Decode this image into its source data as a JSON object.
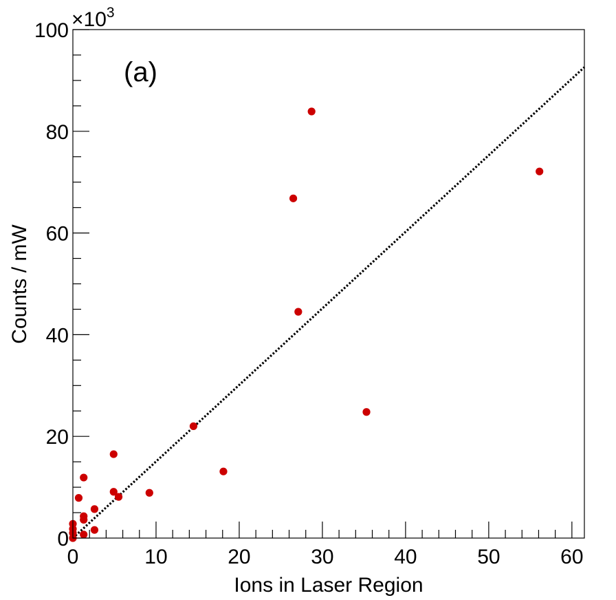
{
  "chart_data": {
    "type": "scatter",
    "panel_label": "(a)",
    "xlabel": "Ions in Laser Region",
    "ylabel": "Counts / mW",
    "y_exponent_label": "×10",
    "y_exponent_power": "3",
    "xlim": [
      0,
      61.5
    ],
    "ylim": [
      0,
      100
    ],
    "x_ticks": [
      0,
      10,
      20,
      30,
      40,
      50,
      60
    ],
    "y_ticks": [
      0,
      20,
      40,
      60,
      80,
      100
    ],
    "x_tick_labels": [
      "0",
      "10",
      "20",
      "30",
      "40",
      "50",
      "60"
    ],
    "y_tick_labels": [
      "0",
      "20",
      "40",
      "60",
      "80",
      "100"
    ],
    "grid": false,
    "marker_color": "#cc0000",
    "fit_line_color": "#000000",
    "fit_line": {
      "style": "dotted",
      "x": [
        0,
        61.5
      ],
      "y": [
        0,
        92.6
      ]
    },
    "points": [
      {
        "x": 0,
        "y": 0
      },
      {
        "x": 0,
        "y": 1.0
      },
      {
        "x": 0,
        "y": 1.8
      },
      {
        "x": 0,
        "y": 2.8
      },
      {
        "x": 0.7,
        "y": 7.9
      },
      {
        "x": 1.3,
        "y": 0.7
      },
      {
        "x": 1.3,
        "y": 3.6
      },
      {
        "x": 1.3,
        "y": 4.3
      },
      {
        "x": 1.3,
        "y": 11.9
      },
      {
        "x": 2.6,
        "y": 1.6
      },
      {
        "x": 2.6,
        "y": 5.7
      },
      {
        "x": 4.9,
        "y": 9.1
      },
      {
        "x": 4.9,
        "y": 16.5
      },
      {
        "x": 5.5,
        "y": 8.1
      },
      {
        "x": 9.2,
        "y": 8.9
      },
      {
        "x": 14.5,
        "y": 22.0
      },
      {
        "x": 18.1,
        "y": 13.1
      },
      {
        "x": 26.5,
        "y": 66.8
      },
      {
        "x": 27.1,
        "y": 44.5
      },
      {
        "x": 28.7,
        "y": 83.9
      },
      {
        "x": 35.3,
        "y": 24.8
      },
      {
        "x": 56.1,
        "y": 72.1
      }
    ]
  }
}
